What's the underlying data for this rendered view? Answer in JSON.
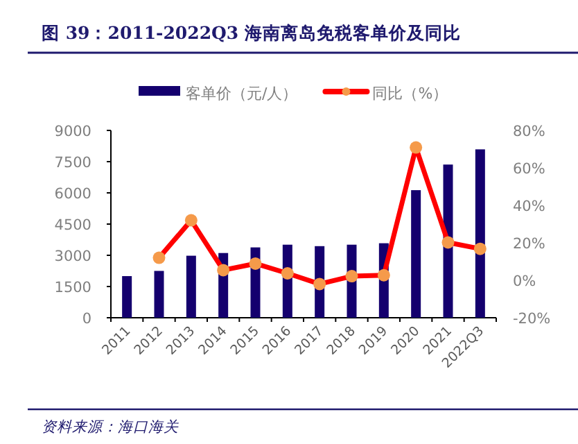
{
  "chart_data": {
    "type": "bar",
    "title": "图 39：2011-2022Q3 海南离岛免税客单价及同比",
    "categories": [
      "2011",
      "2012",
      "2013",
      "2014",
      "2015",
      "2016",
      "2017",
      "2018",
      "2019",
      "2020",
      "2021",
      "2022Q3"
    ],
    "series": [
      {
        "name": "客单价（元/人）",
        "color": "#14006e",
        "values": [
          2000,
          2250,
          2980,
          3110,
          3380,
          3510,
          3440,
          3510,
          3580,
          6130,
          7360,
          8090
        ]
      },
      {
        "name": "同比（%）",
        "color": "#ff0000",
        "type": "line",
        "axis": "y2",
        "marker": "circle",
        "values": [
          null,
          12,
          32,
          5.4,
          8.9,
          3.7,
          -2,
          2.2,
          2.7,
          70.9,
          20.2,
          16.8
        ]
      }
    ],
    "ylim": [
      0,
      9000
    ],
    "yticks": [
      0,
      1500,
      3000,
      4500,
      6000,
      7500,
      9000
    ],
    "y2lim": [
      -20,
      80
    ],
    "y2ticks": [
      {
        "value": -20,
        "label": "-20%"
      },
      {
        "value": 0,
        "label": "0%"
      },
      {
        "value": 20,
        "label": "20%"
      },
      {
        "value": 40,
        "label": "40%"
      },
      {
        "value": 60,
        "label": "60%"
      },
      {
        "value": 80,
        "label": "80%"
      }
    ],
    "grid": false,
    "legend": "top",
    "annotations": [
      "资料来源：海口海关"
    ]
  }
}
